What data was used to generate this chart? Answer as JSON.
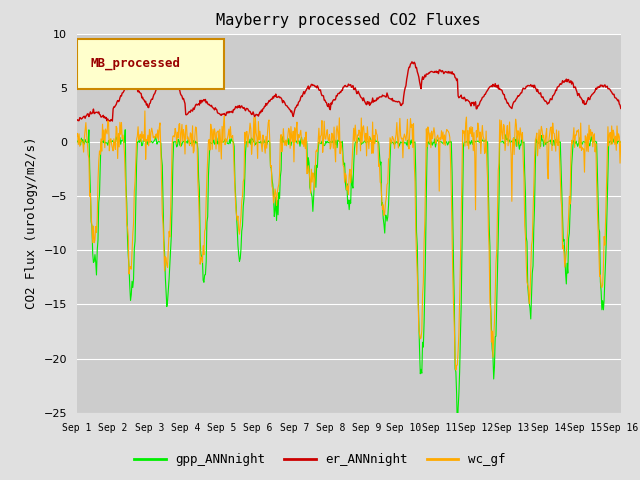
{
  "title": "Mayberry processed CO2 Fluxes",
  "ylabel": "CO2 Flux (urology/m2/s)",
  "ylim": [
    -25,
    10
  ],
  "yticks": [
    -25,
    -20,
    -15,
    -10,
    -5,
    0,
    5,
    10
  ],
  "fig_bg_color": "#e0e0e0",
  "plot_bg_color": "#cccccc",
  "legend_label": "MB_processed",
  "legend_bg": "#ffffcc",
  "legend_edge": "#cc8800",
  "series_colors": {
    "gpp": "#00ee00",
    "er": "#cc0000",
    "wc": "#ffaa00"
  },
  "series_labels": {
    "gpp": "gpp_ANNnight",
    "er": "er_ANNnight",
    "wc": "wc_gf"
  },
  "n_days": 15,
  "pts_per_day": 48
}
